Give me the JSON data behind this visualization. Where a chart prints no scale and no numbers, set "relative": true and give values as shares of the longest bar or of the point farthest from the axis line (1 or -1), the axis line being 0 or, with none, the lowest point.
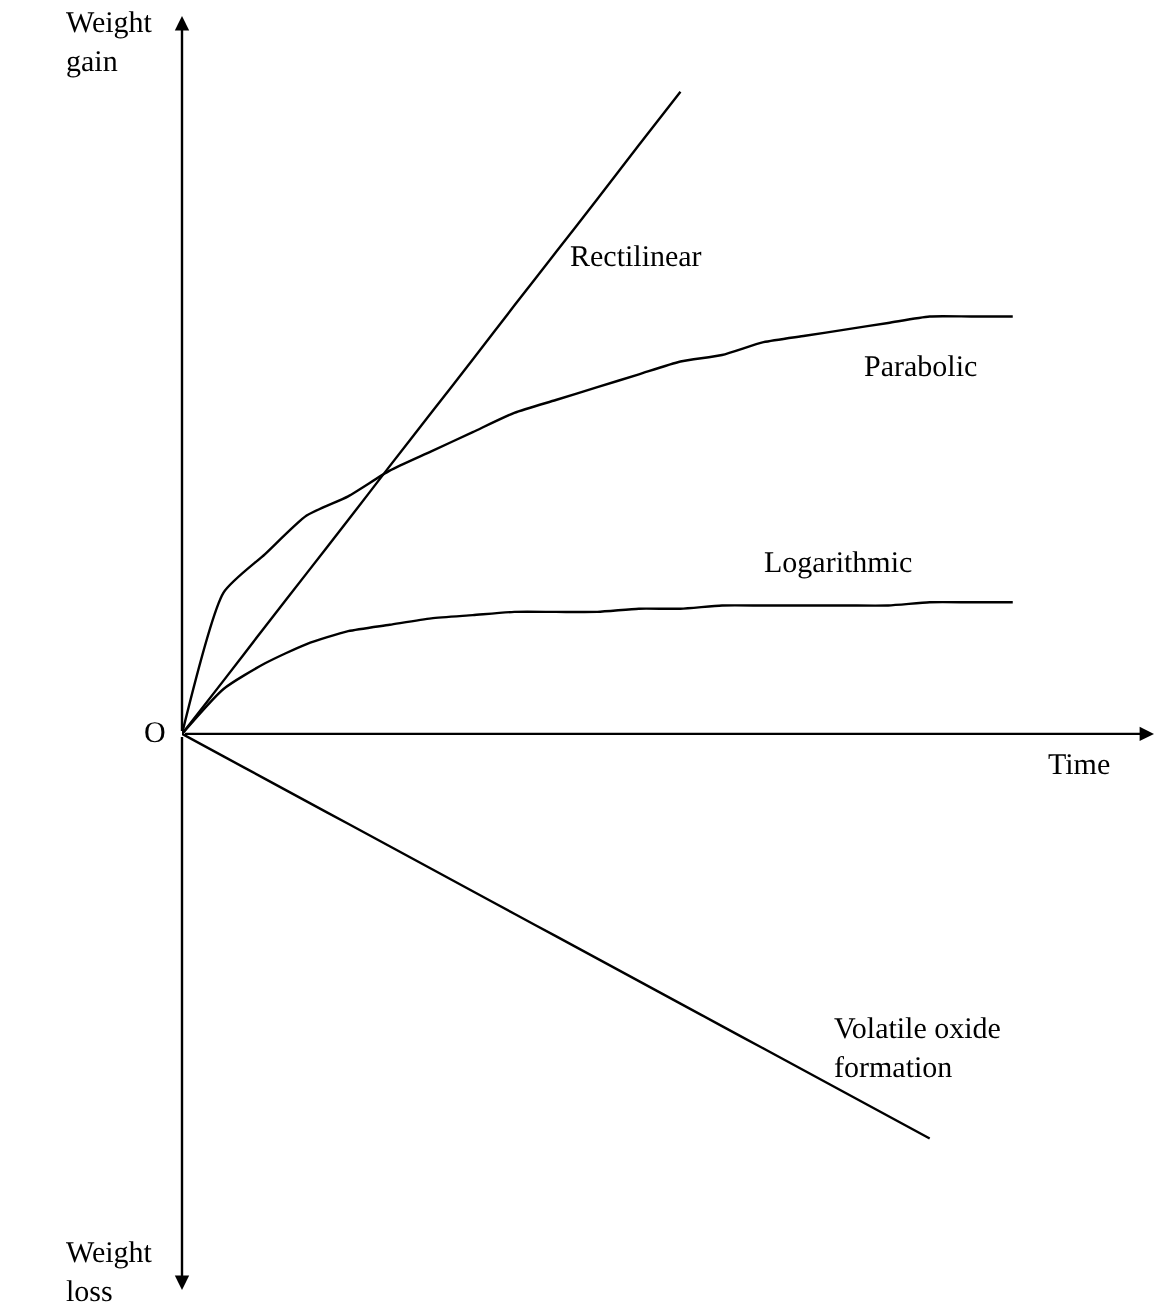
{
  "chart_data": {
    "type": "line",
    "relative": true,
    "xlabel": "Time",
    "annotations": [
      "Weight gain",
      "Weight loss",
      "O"
    ],
    "categories": [
      null,
      null,
      null,
      null,
      null,
      null,
      null,
      null,
      null,
      null,
      null,
      null,
      null,
      null,
      null,
      null,
      null,
      null,
      null,
      null,
      null
    ],
    "series": [
      {
        "name": "Rectilinear",
        "color": "#000000",
        "values": [
          0,
          0.083,
          0.167,
          0.25,
          0.333,
          0.417,
          0.5,
          0.583,
          0.667,
          0.75,
          0.833,
          0.917,
          1.0,
          null,
          null,
          null,
          null,
          null,
          null,
          null,
          null
        ]
      },
      {
        "name": "Parabolic",
        "color": "#000000",
        "values": [
          0,
          0.22,
          0.28,
          0.34,
          0.37,
          0.41,
          0.44,
          0.47,
          0.5,
          0.52,
          0.54,
          0.56,
          0.58,
          0.59,
          0.61,
          0.62,
          0.63,
          0.64,
          0.65,
          0.65,
          0.65
        ]
      },
      {
        "name": "Logarithmic",
        "color": "#000000",
        "values": [
          0,
          0.07,
          0.11,
          0.14,
          0.16,
          0.17,
          0.18,
          0.185,
          0.19,
          0.19,
          0.19,
          0.195,
          0.195,
          0.2,
          0.2,
          0.2,
          0.2,
          0.2,
          0.205,
          0.205,
          0.205
        ]
      },
      {
        "name": "Volatile oxide formation",
        "color": "#000000",
        "values": [
          0,
          -0.035,
          -0.07,
          -0.105,
          -0.14,
          -0.175,
          -0.21,
          -0.245,
          -0.28,
          -0.315,
          -0.35,
          -0.385,
          -0.42,
          -0.455,
          -0.49,
          -0.525,
          -0.56,
          -0.595,
          -0.63,
          null,
          null
        ]
      }
    ],
    "legend": false,
    "marker": "none"
  }
}
